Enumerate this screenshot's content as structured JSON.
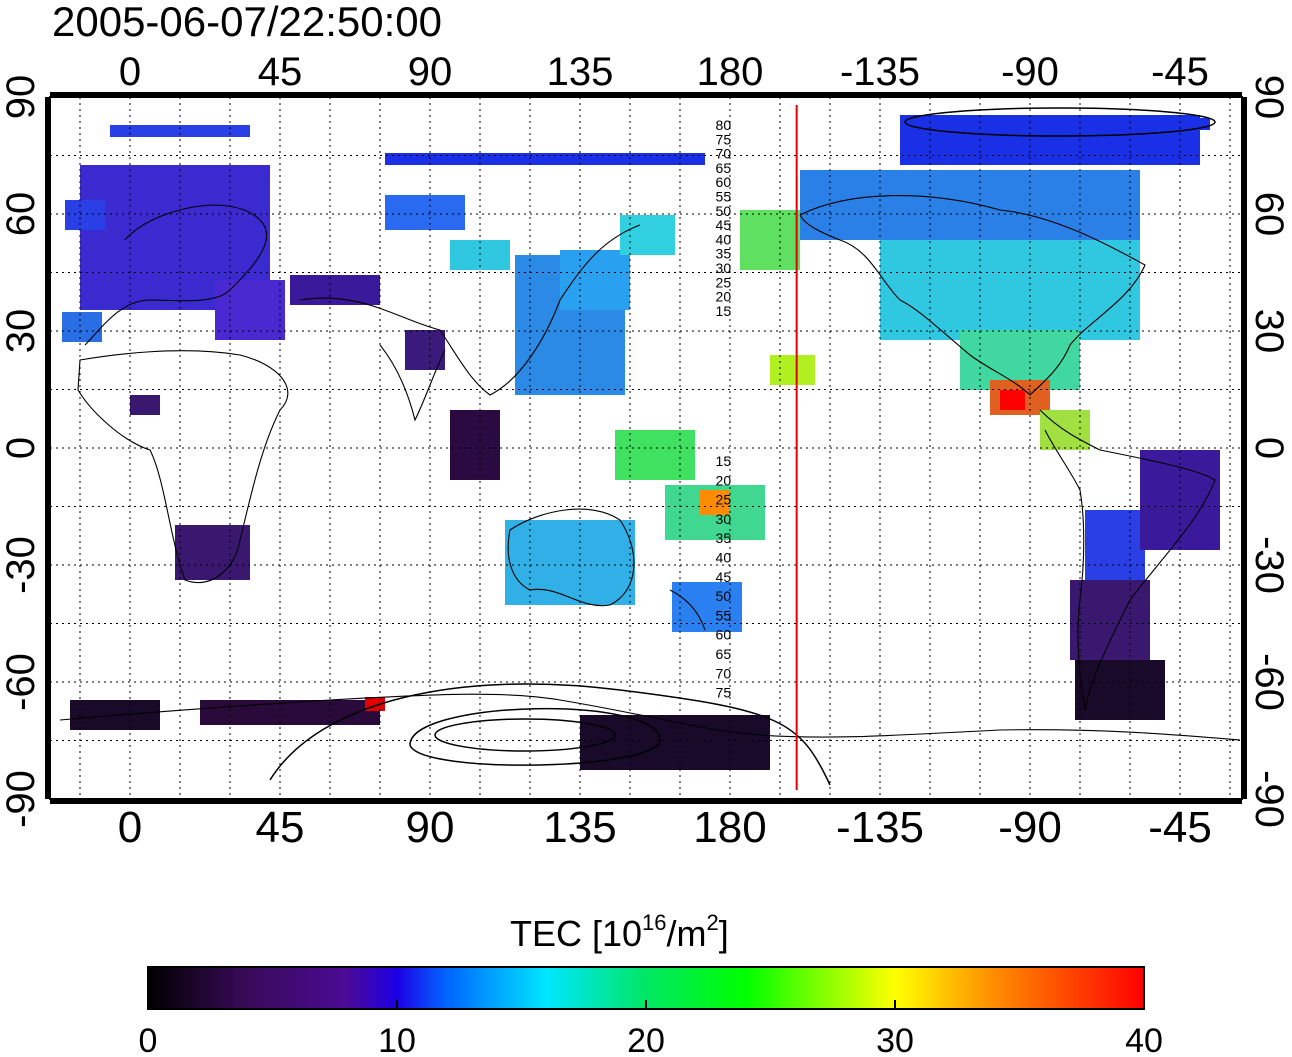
{
  "title": "2005-06-07/22:50:00",
  "map": {
    "lon_ticks": [
      "0",
      "45",
      "90",
      "135",
      "180",
      "-135",
      "-90",
      "-45"
    ],
    "lat_ticks": [
      "90",
      "60",
      "30",
      "0",
      "-30",
      "-60",
      "-90"
    ],
    "lon_tick_values": [
      0,
      45,
      90,
      135,
      180,
      225,
      270,
      315
    ],
    "lat_tick_values": [
      90,
      60,
      30,
      0,
      -30,
      -60,
      -90
    ],
    "lon_range": [
      -24,
      332
    ],
    "lat_range": [
      -90,
      90
    ],
    "grid": "dotted every 15 degrees",
    "terminator_longitude": -160,
    "terminator_color": "#e00000",
    "contour_labels_north": [
      "80",
      "75",
      "70",
      "65",
      "60",
      "55",
      "50",
      "45",
      "40",
      "35",
      "30",
      "25",
      "20",
      "15"
    ],
    "contour_labels_south": [
      "15",
      "20",
      "25",
      "30",
      "35",
      "40",
      "45",
      "50",
      "55",
      "60",
      "65",
      "70",
      "75"
    ]
  },
  "colorbar": {
    "title_prefix": "TEC  [10",
    "title_exp": "16",
    "title_mid": "/m",
    "title_exp2": "2",
    "title_suffix": "]",
    "ticks": [
      "0",
      "10",
      "20",
      "30",
      "40"
    ],
    "tick_values": [
      0,
      10,
      20,
      30,
      40
    ],
    "range": [
      0,
      40
    ],
    "colors": [
      "#000000",
      "#3a0a5a",
      "#4b0a96",
      "#1e00e6",
      "#0066ff",
      "#00e6ff",
      "#00e664",
      "#00ff00",
      "#ffff00",
      "#ff8c00",
      "#ff0000"
    ]
  }
}
